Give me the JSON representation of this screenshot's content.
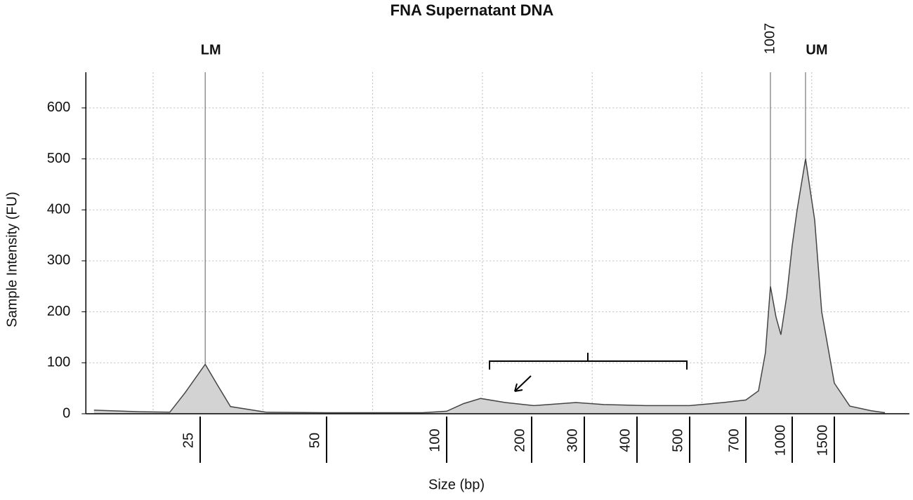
{
  "chart_data": {
    "type": "area",
    "title": "FNA Supernatant DNA",
    "x_label": "Size (bp)",
    "y_label": "Sample Intensity (FU)",
    "x": [
      4,
      13,
      19,
      22,
      26,
      28.5,
      31,
      38,
      50,
      90,
      100,
      120,
      140,
      169,
      204,
      257,
      284,
      337,
      417,
      500,
      620,
      700,
      782,
      827,
      859,
      895,
      927,
      964,
      1000,
      1058,
      1158,
      1267,
      1350,
      1500,
      1683,
      1933,
      2100
    ],
    "values": [
      7,
      4,
      3,
      41,
      97,
      55,
      14,
      3,
      2,
      2,
      5,
      20,
      30,
      22,
      16,
      20,
      22,
      18,
      16,
      16,
      22,
      27,
      45,
      120,
      250,
      190,
      155,
      230,
      330,
      400,
      500,
      380,
      200,
      60,
      15,
      6,
      2
    ],
    "color": "#d3d3d3",
    "xlim": [
      2.4,
      2390
    ],
    "xticks": [
      25,
      50,
      100,
      200,
      300,
      400,
      500,
      700,
      1000,
      1500
    ],
    "ylim": [
      0,
      670
    ],
    "yticks": [
      0,
      100,
      200,
      300,
      400,
      500,
      600
    ],
    "grid": true,
    "markers": [
      {
        "label": "LM",
        "point": 4
      },
      {
        "label": "1007",
        "point": 24
      },
      {
        "label": "UM",
        "point": 30
      }
    ]
  }
}
